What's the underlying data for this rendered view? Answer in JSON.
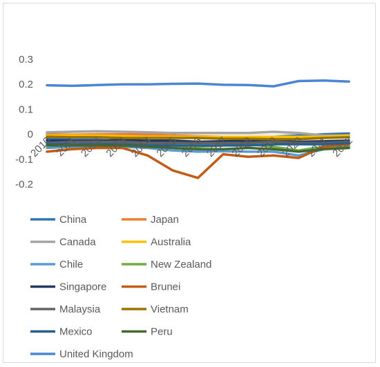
{
  "chart_data": {
    "type": "line",
    "title": "",
    "xlabel": "",
    "ylabel": "",
    "x": [
      "2010",
      "2011",
      "2012",
      "2013",
      "2014",
      "2015",
      "2016",
      "2017",
      "2018",
      "2019",
      "2020",
      "2021",
      "2022"
    ],
    "y_ticks": [
      "0.3",
      "0.2",
      "0.1",
      "0",
      "-0.1",
      "-0.2"
    ],
    "ylim": [
      -0.2,
      0.3
    ],
    "grid": false,
    "legend_position": "bottom",
    "series": [
      {
        "name": "China",
        "color": "#2e75b6",
        "values": [
          -0.02,
          -0.015,
          -0.015,
          -0.01,
          -0.008,
          -0.005,
          -0.01,
          -0.01,
          -0.012,
          -0.01,
          -0.005,
          0.0,
          0.003
        ]
      },
      {
        "name": "Japan",
        "color": "#ed7d31",
        "values": [
          0.0,
          -0.002,
          0.0,
          0.0,
          0.0,
          -0.005,
          -0.008,
          -0.01,
          -0.01,
          -0.01,
          -0.01,
          -0.01,
          -0.008
        ]
      },
      {
        "name": "Canada",
        "color": "#a5a5a5",
        "values": [
          0.008,
          0.01,
          0.012,
          0.01,
          0.008,
          0.005,
          0.005,
          0.005,
          0.005,
          0.01,
          0.005,
          -0.005,
          -0.005
        ]
      },
      {
        "name": "Australia",
        "color": "#ffc000",
        "values": [
          -0.005,
          -0.005,
          -0.005,
          -0.008,
          -0.01,
          -0.01,
          -0.01,
          -0.01,
          -0.01,
          -0.01,
          -0.01,
          -0.01,
          -0.005
        ]
      },
      {
        "name": "Chile",
        "color": "#5b9bd5",
        "values": [
          -0.055,
          -0.05,
          -0.048,
          -0.05,
          -0.055,
          -0.065,
          -0.07,
          -0.068,
          -0.07,
          -0.07,
          -0.085,
          -0.06,
          -0.05
        ]
      },
      {
        "name": "New Zealand",
        "color": "#70ad47",
        "values": [
          -0.04,
          -0.04,
          -0.038,
          -0.038,
          -0.04,
          -0.045,
          -0.05,
          -0.045,
          -0.04,
          -0.05,
          -0.065,
          -0.05,
          -0.045
        ]
      },
      {
        "name": "Singapore",
        "color": "#1f3864",
        "values": [
          -0.025,
          -0.025,
          -0.025,
          -0.022,
          -0.025,
          -0.025,
          -0.03,
          -0.028,
          -0.025,
          -0.028,
          -0.03,
          -0.028,
          -0.025
        ]
      },
      {
        "name": "Brunei",
        "color": "#c55a11",
        "values": [
          -0.07,
          -0.06,
          -0.055,
          -0.055,
          -0.085,
          -0.145,
          -0.175,
          -0.08,
          -0.09,
          -0.085,
          -0.095,
          -0.05,
          -0.04
        ]
      },
      {
        "name": "Malaysia",
        "color": "#636363",
        "values": [
          -0.035,
          -0.03,
          -0.03,
          -0.03,
          -0.035,
          -0.035,
          -0.035,
          -0.035,
          -0.035,
          -0.03,
          -0.035,
          -0.035,
          -0.03
        ]
      },
      {
        "name": "Vietnam",
        "color": "#997300",
        "values": [
          -0.01,
          -0.012,
          -0.012,
          -0.015,
          -0.015,
          -0.015,
          -0.015,
          -0.018,
          -0.018,
          -0.02,
          -0.02,
          -0.015,
          -0.012
        ]
      },
      {
        "name": "Mexico",
        "color": "#255e91",
        "values": [
          -0.04,
          -0.04,
          -0.04,
          -0.04,
          -0.045,
          -0.045,
          -0.045,
          -0.045,
          -0.045,
          -0.04,
          -0.04,
          -0.04,
          -0.035
        ]
      },
      {
        "name": "Peru",
        "color": "#43682b",
        "values": [
          -0.045,
          -0.045,
          -0.045,
          -0.045,
          -0.05,
          -0.055,
          -0.06,
          -0.06,
          -0.055,
          -0.06,
          -0.07,
          -0.06,
          -0.055
        ]
      },
      {
        "name": "United Kingdom",
        "color": "#4a86d4",
        "values": [
          0.196,
          0.194,
          0.197,
          0.2,
          0.2,
          0.202,
          0.203,
          0.198,
          0.197,
          0.192,
          0.213,
          0.215,
          0.211
        ]
      }
    ]
  }
}
